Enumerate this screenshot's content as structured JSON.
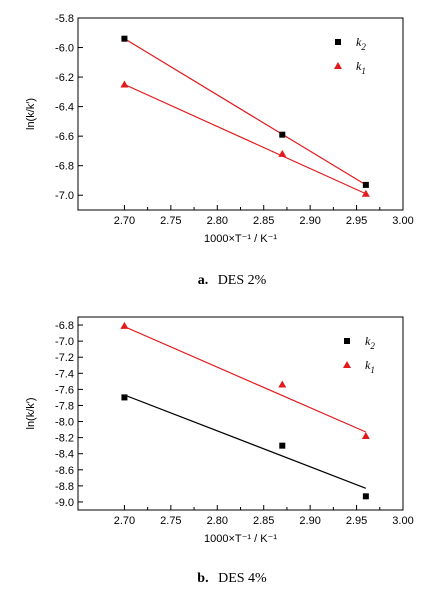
{
  "chart_data": [
    {
      "type": "scatter",
      "caption_letter": "a.",
      "caption_text": "DES 2%",
      "xlabel": "1000×T⁻¹ / K⁻¹",
      "ylabel": "ln(k/k′)",
      "xlim": [
        2.65,
        3.0
      ],
      "ylim": [
        -7.1,
        -5.8
      ],
      "xticks": [
        "2.70",
        "2.75",
        "2.80",
        "2.85",
        "2.90",
        "2.95",
        "3.00"
      ],
      "yticks": [
        "-5.8",
        "-6.0",
        "-6.2",
        "-6.4",
        "-6.6",
        "-6.8",
        "-7.0"
      ],
      "x": [
        2.7,
        2.87,
        2.96
      ],
      "series": [
        {
          "name": "k2",
          "legend_base": "k",
          "legend_sub": "2",
          "marker": "square",
          "color": "#000000",
          "line_color": "#e31a1c",
          "values": [
            -5.94,
            -6.59,
            -6.93
          ],
          "fit": [
            [
              2.7,
              -5.94
            ],
            [
              2.96,
              -6.93
            ]
          ]
        },
        {
          "name": "k1",
          "legend_base": "k",
          "legend_sub": "1",
          "marker": "triangle",
          "color": "#e31a1c",
          "line_color": "#e31a1c",
          "values": [
            -6.25,
            -6.72,
            -6.99
          ],
          "fit": [
            [
              2.7,
              -6.25
            ],
            [
              2.96,
              -6.99
            ]
          ]
        }
      ],
      "legend_position": "top-right",
      "grid": false
    },
    {
      "type": "scatter",
      "caption_letter": "b.",
      "caption_text": "DES 4%",
      "xlabel": "1000×T⁻¹ / K⁻¹",
      "ylabel": "ln(k/k′)",
      "xlim": [
        2.65,
        3.0
      ],
      "ylim": [
        -9.1,
        -6.7
      ],
      "xticks": [
        "2.70",
        "2.75",
        "2.80",
        "2.85",
        "2.90",
        "2.95",
        "3.00"
      ],
      "yticks": [
        "-6.8",
        "-7.0",
        "-7.2",
        "-7.4",
        "-7.6",
        "-7.8",
        "-8.0",
        "-8.2",
        "-8.4",
        "-8.6",
        "-8.8",
        "-9.0"
      ],
      "x": [
        2.7,
        2.87,
        2.96
      ],
      "series": [
        {
          "name": "k2",
          "legend_base": "k",
          "legend_sub": "2",
          "marker": "square",
          "color": "#000000",
          "line_color": "#000000",
          "values": [
            -7.7,
            -8.3,
            -8.93
          ],
          "fit": [
            [
              2.7,
              -7.67
            ],
            [
              2.96,
              -8.83
            ]
          ]
        },
        {
          "name": "k1",
          "legend_base": "k",
          "legend_sub": "1",
          "marker": "triangle",
          "color": "#e31a1c",
          "line_color": "#e31a1c",
          "values": [
            -6.81,
            -7.54,
            -8.18
          ],
          "fit": [
            [
              2.7,
              -6.82
            ],
            [
              2.96,
              -8.13
            ]
          ]
        }
      ],
      "legend_position": "top-right",
      "grid": false
    }
  ]
}
